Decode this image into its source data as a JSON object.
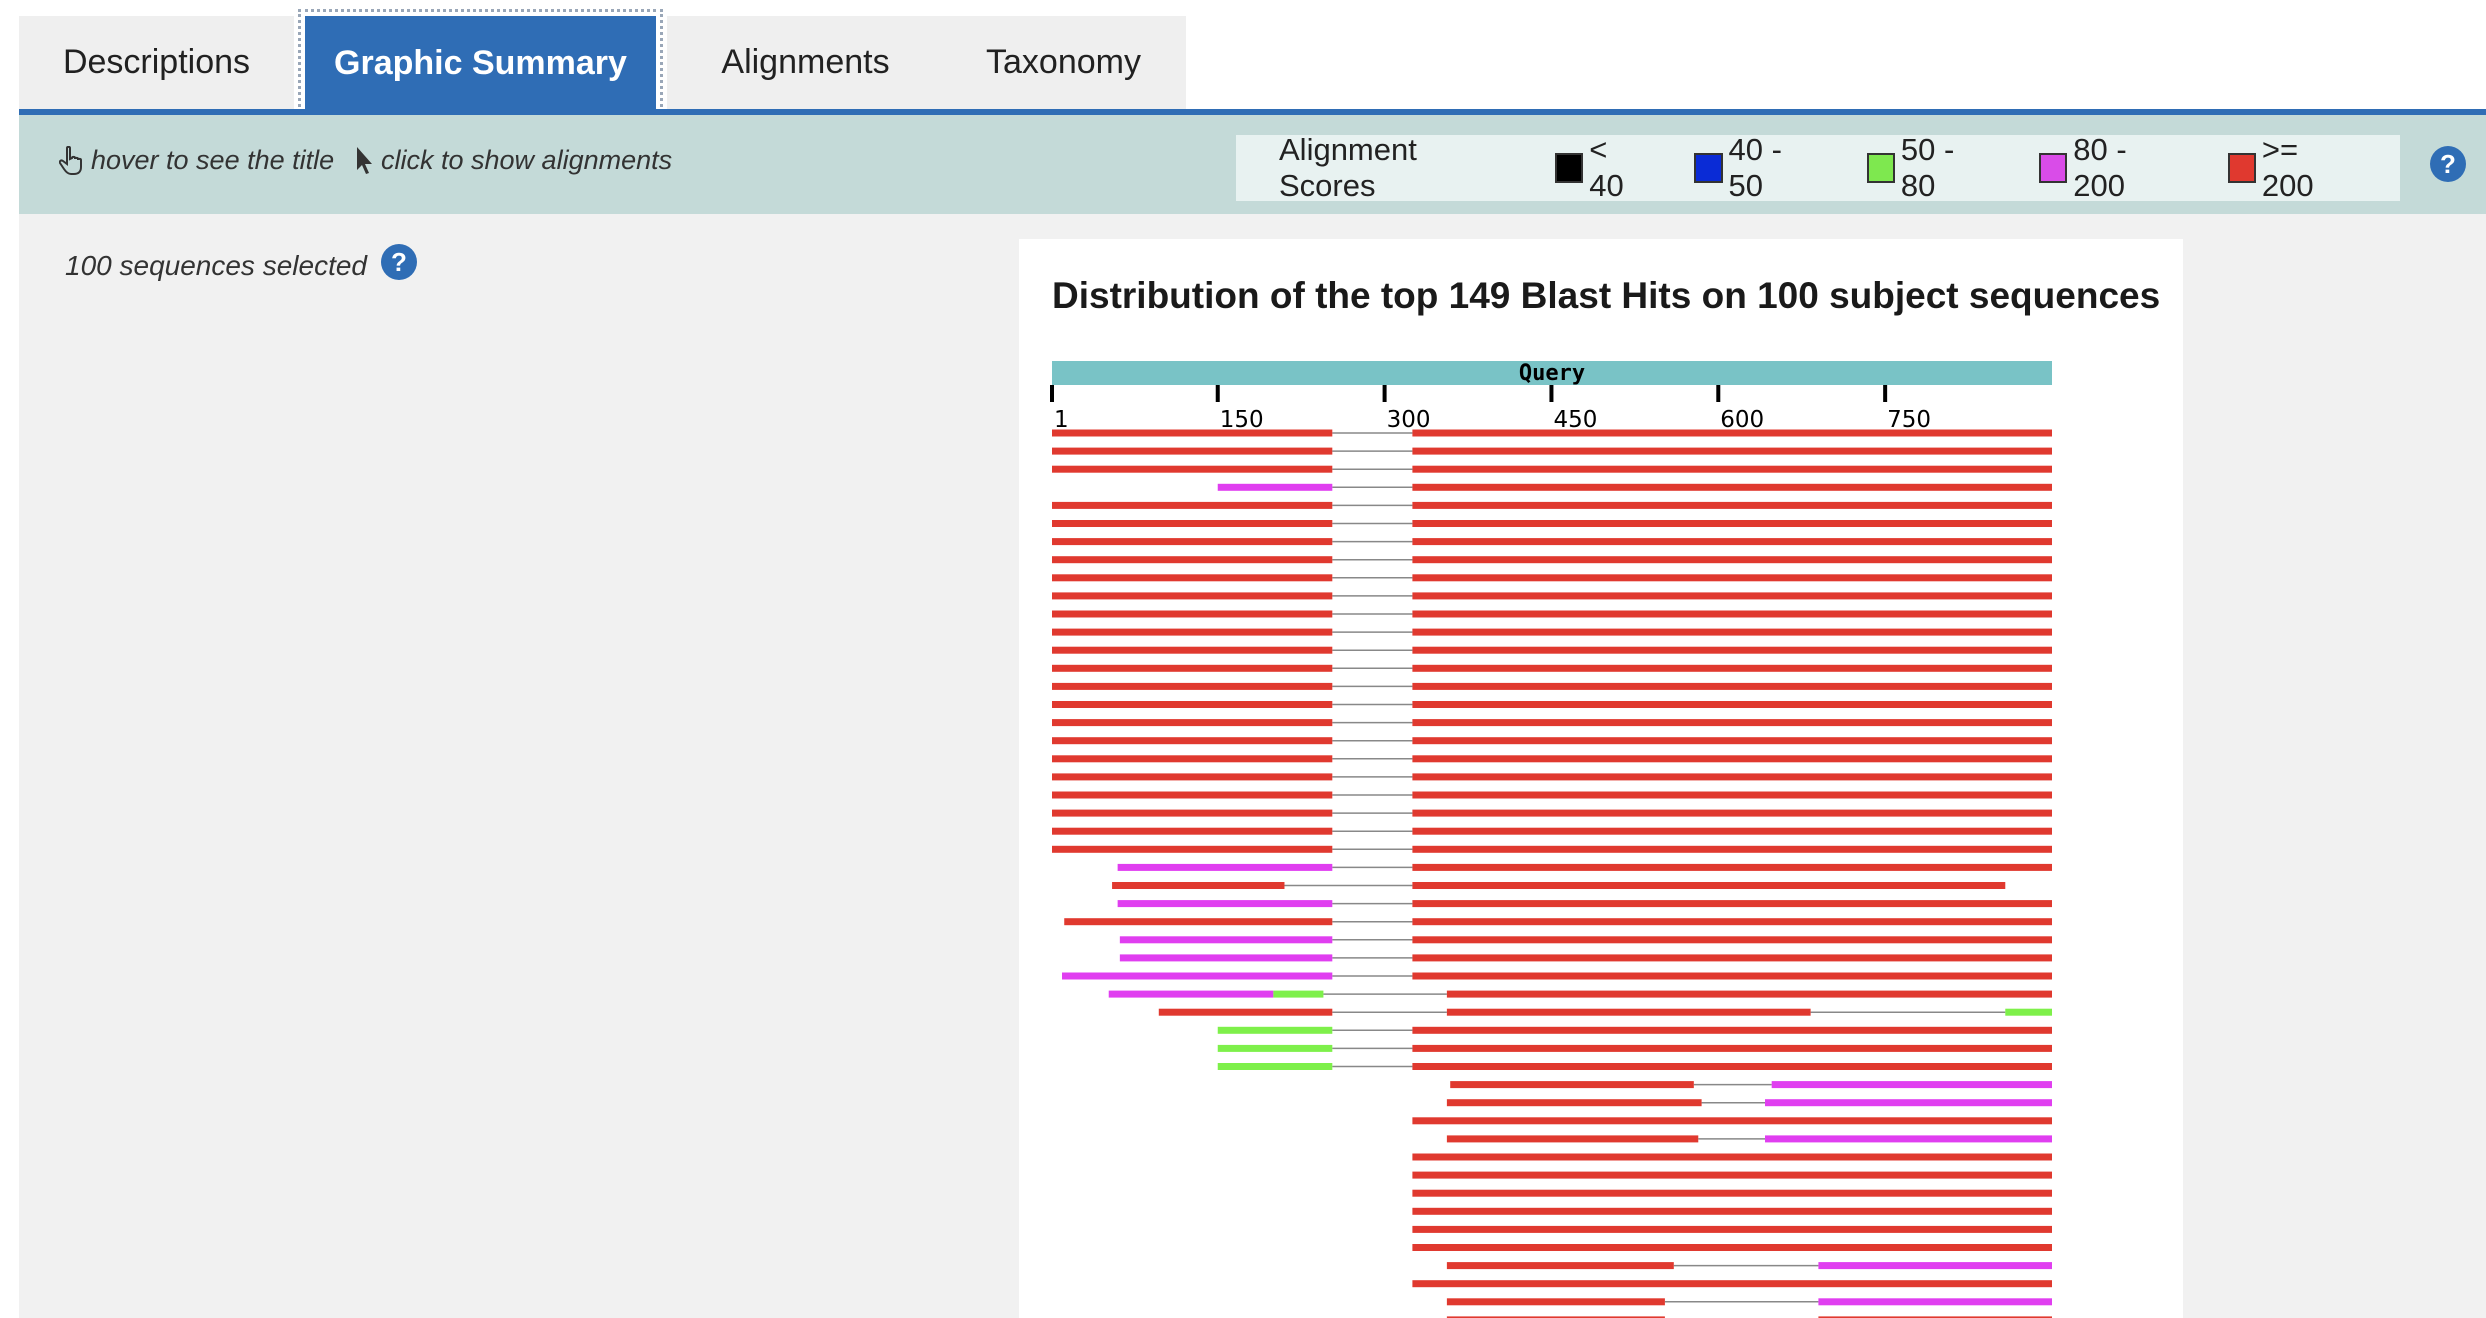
{
  "tabs": [
    {
      "label": "Descriptions",
      "active": false
    },
    {
      "label": "Graphic Summary",
      "active": true
    },
    {
      "label": "Alignments",
      "active": false
    },
    {
      "label": "Taxonomy",
      "active": false
    }
  ],
  "toolbar": {
    "hover_hint": "hover to see the title",
    "click_hint": "click to show alignments",
    "help_icon": "?"
  },
  "legend": {
    "title": "Alignment Scores",
    "items": [
      {
        "label": "< 40",
        "color": "#000000"
      },
      {
        "label": "40 - 50",
        "color": "#0a2bd6"
      },
      {
        "label": "50 - 80",
        "color": "#7ee84f"
      },
      {
        "label": "80 - 200",
        "color": "#d94ce8"
      },
      {
        "label": ">= 200",
        "color": "#e0392f"
      }
    ]
  },
  "sidebar": {
    "selected_text": "100 sequences selected"
  },
  "graphic": {
    "title": "Distribution of the top 149 Blast Hits on 100 subject sequences",
    "query_label": "Query",
    "query_bar_color": "#79c3c6",
    "axis": {
      "min": 1,
      "max": 900,
      "ticks": [
        1,
        150,
        300,
        450,
        600,
        750
      ]
    },
    "colors": {
      "red": "#e0392f",
      "magenta": "#e03ef0",
      "green": "#7ef04a",
      "connector": "#888888"
    },
    "rows": [
      [
        [
          1,
          253,
          "red"
        ],
        [
          325,
          900,
          "red"
        ]
      ],
      [
        [
          1,
          253,
          "red"
        ],
        [
          325,
          900,
          "red"
        ]
      ],
      [
        [
          1,
          253,
          "red"
        ],
        [
          325,
          900,
          "red"
        ]
      ],
      [
        [
          150,
          253,
          "magenta"
        ],
        [
          325,
          900,
          "red"
        ]
      ],
      [
        [
          1,
          253,
          "red"
        ],
        [
          325,
          900,
          "red"
        ]
      ],
      [
        [
          1,
          253,
          "red"
        ],
        [
          325,
          900,
          "red"
        ]
      ],
      [
        [
          1,
          253,
          "red"
        ],
        [
          325,
          900,
          "red"
        ]
      ],
      [
        [
          1,
          253,
          "red"
        ],
        [
          325,
          900,
          "red"
        ]
      ],
      [
        [
          1,
          253,
          "red"
        ],
        [
          325,
          900,
          "red"
        ]
      ],
      [
        [
          1,
          253,
          "red"
        ],
        [
          325,
          900,
          "red"
        ]
      ],
      [
        [
          1,
          253,
          "red"
        ],
        [
          325,
          900,
          "red"
        ]
      ],
      [
        [
          1,
          253,
          "red"
        ],
        [
          325,
          900,
          "red"
        ]
      ],
      [
        [
          1,
          253,
          "red"
        ],
        [
          325,
          900,
          "red"
        ]
      ],
      [
        [
          1,
          253,
          "red"
        ],
        [
          325,
          900,
          "red"
        ]
      ],
      [
        [
          1,
          253,
          "red"
        ],
        [
          325,
          900,
          "red"
        ]
      ],
      [
        [
          1,
          253,
          "red"
        ],
        [
          325,
          900,
          "red"
        ]
      ],
      [
        [
          1,
          253,
          "red"
        ],
        [
          325,
          900,
          "red"
        ]
      ],
      [
        [
          1,
          253,
          "red"
        ],
        [
          325,
          900,
          "red"
        ]
      ],
      [
        [
          1,
          253,
          "red"
        ],
        [
          325,
          900,
          "red"
        ]
      ],
      [
        [
          1,
          253,
          "red"
        ],
        [
          325,
          900,
          "red"
        ]
      ],
      [
        [
          1,
          253,
          "red"
        ],
        [
          325,
          900,
          "red"
        ]
      ],
      [
        [
          1,
          253,
          "red"
        ],
        [
          325,
          900,
          "red"
        ]
      ],
      [
        [
          1,
          253,
          "red"
        ],
        [
          325,
          900,
          "red"
        ]
      ],
      [
        [
          1,
          253,
          "red"
        ],
        [
          325,
          900,
          "red"
        ]
      ],
      [
        [
          60,
          253,
          "magenta"
        ],
        [
          325,
          900,
          "red"
        ]
      ],
      [
        [
          55,
          210,
          "red"
        ],
        [
          325,
          858,
          "red"
        ]
      ],
      [
        [
          60,
          253,
          "magenta"
        ],
        [
          325,
          900,
          "red"
        ]
      ],
      [
        [
          12,
          253,
          "red"
        ],
        [
          325,
          900,
          "red"
        ]
      ],
      [
        [
          62,
          253,
          "magenta"
        ],
        [
          325,
          900,
          "red"
        ]
      ],
      [
        [
          62,
          253,
          "magenta"
        ],
        [
          325,
          900,
          "red"
        ]
      ],
      [
        [
          10,
          253,
          "magenta"
        ],
        [
          325,
          900,
          "red"
        ]
      ],
      [
        [
          52,
          200,
          "magenta"
        ],
        [
          200,
          245,
          "green"
        ],
        [
          356,
          900,
          "red"
        ]
      ],
      [
        [
          97,
          253,
          "red"
        ],
        [
          356,
          683,
          "red"
        ],
        [
          858,
          900,
          "green"
        ]
      ],
      [
        [
          150,
          253,
          "green"
        ],
        [
          325,
          900,
          "red"
        ]
      ],
      [
        [
          150,
          253,
          "green"
        ],
        [
          325,
          900,
          "red"
        ]
      ],
      [
        [
          150,
          253,
          "green"
        ],
        [
          325,
          900,
          "red"
        ]
      ],
      [
        [
          359,
          578,
          "red"
        ],
        [
          648,
          900,
          "magenta"
        ]
      ],
      [
        [
          356,
          585,
          "red"
        ],
        [
          642,
          900,
          "magenta"
        ]
      ],
      [
        [
          325,
          900,
          "red"
        ]
      ],
      [
        [
          356,
          582,
          "red"
        ],
        [
          642,
          900,
          "magenta"
        ]
      ],
      [
        [
          325,
          900,
          "red"
        ]
      ],
      [
        [
          325,
          900,
          "red"
        ]
      ],
      [
        [
          325,
          900,
          "red"
        ]
      ],
      [
        [
          325,
          900,
          "red"
        ]
      ],
      [
        [
          325,
          900,
          "red"
        ]
      ],
      [
        [
          325,
          900,
          "red"
        ]
      ],
      [
        [
          356,
          560,
          "red"
        ],
        [
          690,
          900,
          "magenta"
        ]
      ],
      [
        [
          325,
          900,
          "red"
        ]
      ],
      [
        [
          356,
          552,
          "red"
        ],
        [
          690,
          900,
          "magenta"
        ]
      ],
      [
        [
          356,
          552,
          "red"
        ],
        [
          690,
          900,
          "red"
        ]
      ]
    ]
  }
}
